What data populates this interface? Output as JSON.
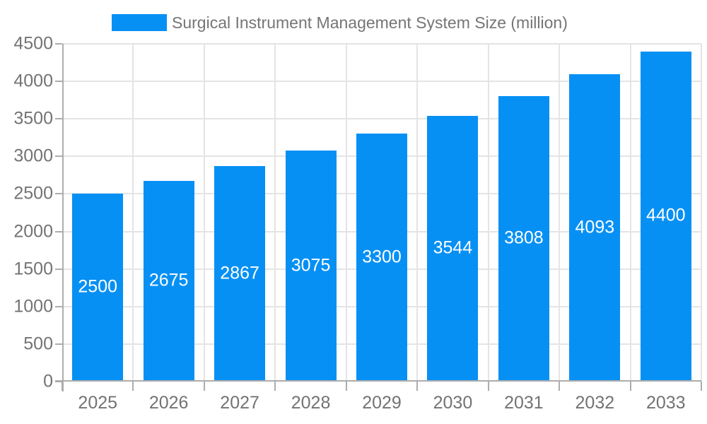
{
  "chart_data": {
    "type": "bar",
    "title": "Surgical Instrument Management System Size (million)",
    "categories": [
      "2025",
      "2026",
      "2027",
      "2028",
      "2029",
      "2030",
      "2031",
      "2032",
      "2033"
    ],
    "values": [
      2500,
      2675,
      2867,
      3075,
      3300,
      3544,
      3808,
      4093,
      4400
    ],
    "xlabel": "",
    "ylabel": "",
    "ylim": [
      0,
      4500
    ],
    "ytick_step": 500,
    "grid": true,
    "legend_position": "top",
    "value_labels": "inside-center-white"
  },
  "colors": {
    "bar": "#0790f4",
    "grid": "#e4e4e4",
    "axis": "#adadad",
    "tick_text": "#737373",
    "legend_text": "#757575",
    "value_text": "#ffffff",
    "background": "#ffffff"
  }
}
